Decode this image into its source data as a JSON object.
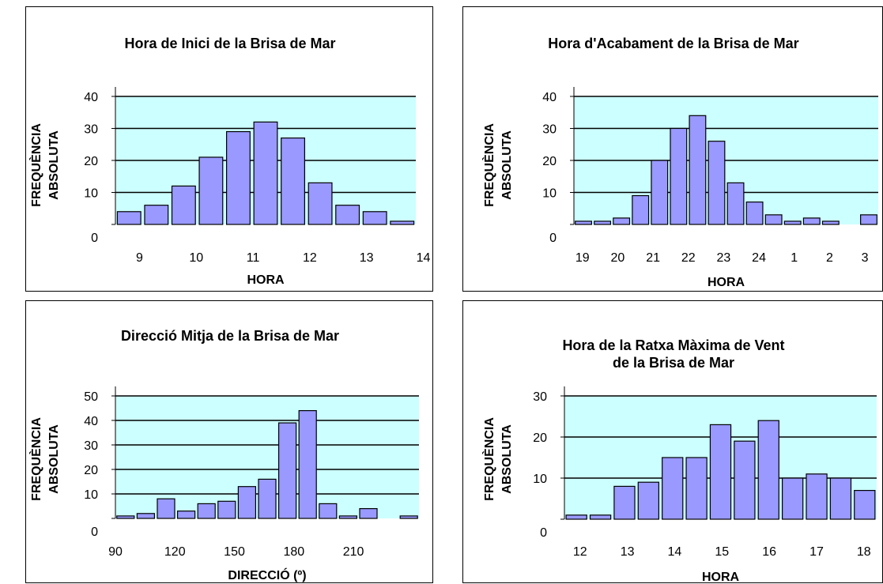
{
  "chart_data": [
    {
      "type": "bar",
      "title": [
        "Hora de Inici de la Brisa de Mar"
      ],
      "xlabel": "HORA",
      "ylabel": [
        "FREQUÈNCIA",
        "ABSOLUTA"
      ],
      "ylim": [
        0,
        40
      ],
      "yticks": [
        0,
        10,
        20,
        30,
        40
      ],
      "xticks": [
        "9",
        "10",
        "11",
        "12",
        "13",
        "14"
      ],
      "values": [
        4,
        6,
        12,
        21,
        29,
        32,
        27,
        13,
        6,
        4,
        1
      ],
      "grid": true,
      "bar_color": "#9999ff",
      "plot_bg": "#ccffff"
    },
    {
      "type": "bar",
      "title": [
        "Hora d'Acabament de la Brisa de Mar"
      ],
      "xlabel": "HORA",
      "ylabel": [
        "FREQUÈNCIA",
        "ABSOLUTA"
      ],
      "ylim": [
        0,
        40
      ],
      "yticks": [
        0,
        10,
        20,
        30,
        40
      ],
      "xticks": [
        "19",
        "20",
        "21",
        "22",
        "23",
        "24",
        "1",
        "2",
        "3"
      ],
      "values": [
        1,
        1,
        2,
        9,
        20,
        30,
        34,
        26,
        13,
        7,
        3,
        1,
        2,
        1,
        0,
        3
      ],
      "grid": true,
      "bar_color": "#9999ff",
      "plot_bg": "#ccffff"
    },
    {
      "type": "bar",
      "title": [
        "Direcció Mitja de la Brisa de Mar"
      ],
      "xlabel": "DIRECCIÓ (º)",
      "ylabel": [
        "FREQUÈNCIA",
        "ABSOLUTA"
      ],
      "ylim": [
        0,
        50
      ],
      "yticks": [
        0,
        10,
        20,
        30,
        40,
        50
      ],
      "xticks": [
        "90",
        "120",
        "150",
        "180",
        "210"
      ],
      "values": [
        1,
        2,
        8,
        3,
        6,
        7,
        13,
        16,
        39,
        44,
        6,
        1,
        4,
        0,
        1
      ],
      "grid": true,
      "bar_color": "#9999ff",
      "plot_bg": "#ccffff"
    },
    {
      "type": "bar",
      "title": [
        "Hora de la Ratxa Màxima de Vent",
        "de la Brisa de Mar"
      ],
      "xlabel": "HORA",
      "ylabel": [
        "FREQUÈNCIA",
        "ABSOLUTA"
      ],
      "ylim": [
        0,
        30
      ],
      "yticks": [
        0,
        10,
        20,
        30
      ],
      "xticks": [
        "12",
        "13",
        "14",
        "15",
        "16",
        "17",
        "18"
      ],
      "values": [
        1,
        1,
        8,
        9,
        15,
        15,
        23,
        19,
        24,
        10,
        11,
        10,
        7
      ],
      "grid": true,
      "bar_color": "#9999ff",
      "plot_bg": "#ccffff"
    }
  ]
}
